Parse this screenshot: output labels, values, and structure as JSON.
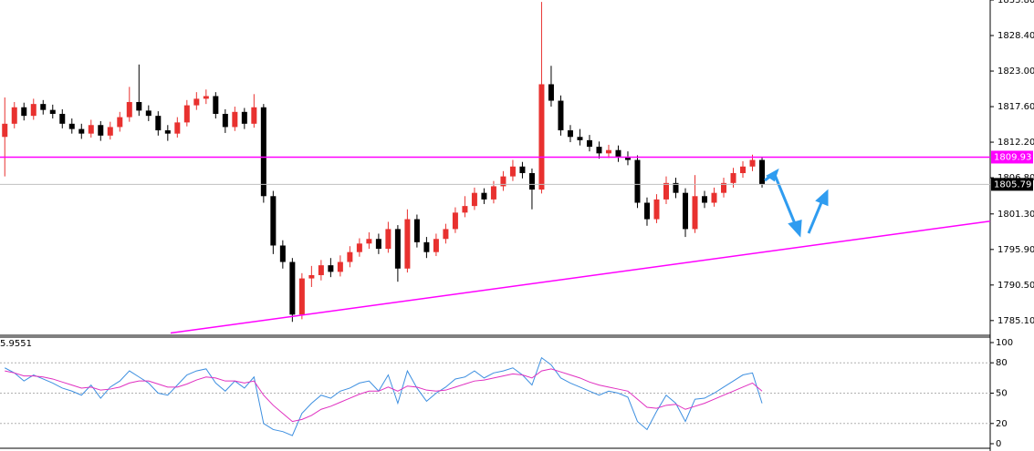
{
  "chart_data": [
    {
      "type": "candlestick",
      "up_color": "#e8312f",
      "down_color": "#000000",
      "xlim": [
        -0.5,
        102.8
      ],
      "ylim": [
        1783.0,
        1833.8
      ],
      "yticks": [
        {
          "value": 1833.8,
          "label": "1833.80"
        },
        {
          "value": 1828.4,
          "label": "1828.40"
        },
        {
          "value": 1823.0,
          "label": "1823.00"
        },
        {
          "value": 1817.6,
          "label": "1817.60"
        },
        {
          "value": 1812.2,
          "label": "1812.20"
        },
        {
          "value": 1806.8,
          "label": "1806.80"
        },
        {
          "value": 1801.3,
          "label": "1801.30"
        },
        {
          "value": 1795.9,
          "label": "1795.90"
        },
        {
          "value": 1790.5,
          "label": "1790.50"
        },
        {
          "value": 1785.1,
          "label": "1785.10"
        }
      ],
      "open": [
        1813.0,
        1815.0,
        1817.5,
        1816.2,
        1818.0,
        1817.1,
        1816.5,
        1815.0,
        1814.2,
        1813.5,
        1814.8,
        1813.2,
        1814.5,
        1816.0,
        1818.3,
        1817.0,
        1816.2,
        1814.0,
        1813.5,
        1815.2,
        1817.8,
        1818.8,
        1819.2,
        1816.5,
        1814.5,
        1816.8,
        1815.0,
        1817.5,
        1804.0,
        1796.5,
        1794.0,
        1786.0,
        1791.5,
        1792.0,
        1793.5,
        1792.5,
        1794.0,
        1795.5,
        1796.8,
        1797.5,
        1796.0,
        1799.0,
        1793.0,
        1800.5,
        1797.0,
        1795.5,
        1797.5,
        1799.0,
        1801.5,
        1802.5,
        1804.5,
        1803.5,
        1805.5,
        1807.0,
        1808.5,
        1807.5,
        1805.0,
        1821.0,
        1818.5,
        1814.0,
        1813.0,
        1812.5,
        1811.5,
        1810.5,
        1811.0,
        1810.0,
        1809.5,
        1803.0,
        1800.5,
        1803.5,
        1806.0,
        1804.5,
        1799.0,
        1804.0,
        1803.0,
        1804.5,
        1806.0,
        1807.5,
        1808.5,
        1809.5
      ],
      "high": [
        1819.0,
        1818.3,
        1818.2,
        1818.8,
        1818.6,
        1817.9,
        1817.2,
        1815.8,
        1815.0,
        1815.6,
        1815.4,
        1815.3,
        1816.8,
        1820.6,
        1824.0,
        1817.8,
        1816.9,
        1814.8,
        1816.0,
        1818.6,
        1819.8,
        1820.2,
        1819.8,
        1817.2,
        1817.6,
        1817.4,
        1819.5,
        1818.0,
        1804.8,
        1797.3,
        1794.6,
        1792.3,
        1793.4,
        1794.3,
        1794.6,
        1795.0,
        1796.4,
        1797.6,
        1798.5,
        1798.3,
        1800.1,
        1799.6,
        1802.0,
        1801.2,
        1797.8,
        1798.3,
        1799.8,
        1802.3,
        1804.0,
        1805.3,
        1805.2,
        1806.3,
        1807.8,
        1809.5,
        1809.2,
        1808.2,
        1833.5,
        1823.8,
        1819.3,
        1814.8,
        1814.2,
        1813.3,
        1812.3,
        1811.8,
        1811.7,
        1810.8,
        1810.2,
        1803.8,
        1804.3,
        1807.0,
        1806.8,
        1805.2,
        1807.2,
        1804.8,
        1805.3,
        1806.8,
        1808.3,
        1809.3,
        1810.3,
        1810.0
      ],
      "low": [
        1807.0,
        1814.3,
        1815.5,
        1815.6,
        1816.4,
        1815.8,
        1814.3,
        1813.5,
        1812.7,
        1812.9,
        1812.4,
        1812.6,
        1813.8,
        1815.3,
        1816.2,
        1815.4,
        1813.2,
        1812.4,
        1812.9,
        1814.6,
        1817.1,
        1818.0,
        1815.8,
        1813.6,
        1813.9,
        1814.2,
        1814.4,
        1803.0,
        1795.2,
        1793.0,
        1784.9,
        1785.3,
        1790.2,
        1791.2,
        1791.7,
        1791.8,
        1793.2,
        1794.8,
        1796.0,
        1795.2,
        1795.4,
        1791.0,
        1792.4,
        1796.2,
        1794.6,
        1794.9,
        1796.8,
        1798.4,
        1800.8,
        1801.9,
        1802.8,
        1802.9,
        1804.8,
        1806.3,
        1806.7,
        1802.0,
        1804.4,
        1817.6,
        1813.2,
        1812.2,
        1811.7,
        1810.8,
        1809.7,
        1809.8,
        1809.2,
        1808.7,
        1802.2,
        1799.5,
        1799.9,
        1802.8,
        1803.7,
        1797.8,
        1798.4,
        1802.2,
        1802.4,
        1803.8,
        1805.3,
        1806.8,
        1807.8,
        1805.3
      ],
      "close": [
        1815.0,
        1817.5,
        1816.2,
        1818.0,
        1817.1,
        1816.5,
        1815.0,
        1814.2,
        1813.5,
        1814.8,
        1813.2,
        1814.5,
        1816.0,
        1818.3,
        1817.0,
        1816.2,
        1814.0,
        1813.5,
        1815.2,
        1817.8,
        1818.8,
        1819.2,
        1816.5,
        1814.5,
        1816.8,
        1815.0,
        1817.5,
        1804.0,
        1796.5,
        1794.0,
        1786.0,
        1791.5,
        1792.0,
        1793.5,
        1792.5,
        1794.0,
        1795.5,
        1796.8,
        1797.5,
        1796.0,
        1799.0,
        1793.0,
        1800.5,
        1797.0,
        1795.5,
        1797.5,
        1799.0,
        1801.5,
        1802.5,
        1804.5,
        1803.5,
        1805.5,
        1807.0,
        1808.5,
        1807.5,
        1805.0,
        1821.0,
        1818.5,
        1814.0,
        1813.0,
        1812.5,
        1811.5,
        1810.5,
        1811.0,
        1810.0,
        1809.5,
        1803.0,
        1800.5,
        1803.5,
        1806.0,
        1804.5,
        1799.0,
        1804.0,
        1803.0,
        1804.5,
        1806.0,
        1807.5,
        1808.5,
        1809.5,
        1805.79
      ],
      "hline": {
        "value": 1809.93,
        "label": "1809.93",
        "color": "#ff00ff"
      },
      "last_price": {
        "value": 1805.79,
        "label": "1805.79",
        "color": "#c0c0c0"
      },
      "trendline": {
        "x": [
          17.3,
          102.8
        ],
        "y": [
          1783.2,
          1800.2
        ],
        "color": "#ff00ff"
      }
    },
    {
      "type": "line",
      "label": "5.9551",
      "ylim": [
        0,
        100
      ],
      "yticks": [
        100,
        80,
        50,
        20,
        0
      ],
      "series": [
        {
          "color": "#3d8fe0",
          "values": [
            75,
            70,
            62,
            68,
            64,
            60,
            55,
            52,
            48,
            58,
            45,
            56,
            62,
            72,
            66,
            60,
            50,
            48,
            58,
            68,
            72,
            74,
            60,
            52,
            62,
            55,
            66,
            20,
            14,
            12,
            8,
            30,
            40,
            48,
            45,
            52,
            55,
            60,
            62,
            52,
            68,
            40,
            72,
            55,
            42,
            50,
            56,
            64,
            66,
            72,
            65,
            70,
            72,
            75,
            68,
            58,
            85,
            78,
            65,
            60,
            56,
            52,
            48,
            52,
            50,
            46,
            22,
            14,
            32,
            48,
            40,
            22,
            44,
            45,
            50,
            56,
            62,
            68,
            70,
            40
          ]
        },
        {
          "color": "#e02fc0",
          "values": [
            72,
            70,
            67,
            67,
            66,
            64,
            61,
            58,
            55,
            56,
            53,
            54,
            56,
            60,
            62,
            62,
            59,
            56,
            56,
            59,
            63,
            66,
            65,
            62,
            62,
            60,
            62,
            48,
            38,
            30,
            22,
            24,
            28,
            34,
            37,
            41,
            45,
            49,
            52,
            52,
            56,
            52,
            57,
            56,
            53,
            52,
            53,
            56,
            59,
            62,
            63,
            65,
            67,
            69,
            68,
            65,
            72,
            74,
            71,
            68,
            65,
            61,
            58,
            56,
            54,
            52,
            44,
            36,
            35,
            38,
            39,
            34,
            37,
            40,
            44,
            48,
            52,
            56,
            60,
            52
          ]
        }
      ]
    }
  ]
}
